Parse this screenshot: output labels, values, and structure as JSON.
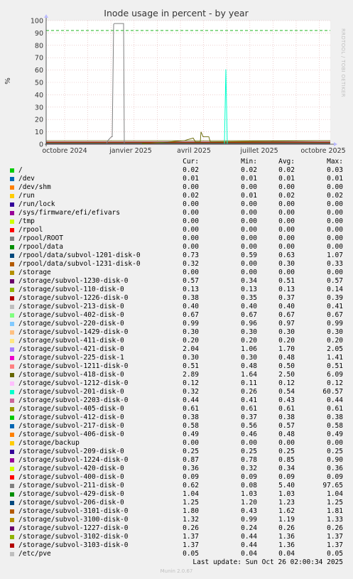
{
  "chart_data": {
    "type": "line",
    "title": "Inode usage in percent - by year",
    "ylabel": "%",
    "ylim": [
      0,
      100
    ],
    "yticks": [
      0,
      10,
      20,
      30,
      40,
      50,
      60,
      70,
      80,
      90,
      100
    ],
    "x_labels": [
      "octobre 2024",
      "janvier 2025",
      "avril 2025",
      "juillet 2025",
      "octobre 2025"
    ],
    "warning_line": 92,
    "legend_headers": {
      "cur": "Cur:",
      "min": "Min:",
      "avg": "Avg:",
      "max": "Max:"
    },
    "series": [
      {
        "name": "/",
        "color": "#00cc00",
        "cur": "0.02",
        "min": "0.02",
        "avg": "0.02",
        "max": "0.03"
      },
      {
        "name": "/dev",
        "color": "#0066b3",
        "cur": "0.01",
        "min": "0.01",
        "avg": "0.01",
        "max": "0.01"
      },
      {
        "name": "/dev/shm",
        "color": "#ff8000",
        "cur": "0.00",
        "min": "0.00",
        "avg": "0.00",
        "max": "0.00"
      },
      {
        "name": "/run",
        "color": "#ffcc00",
        "cur": "0.02",
        "min": "0.01",
        "avg": "0.02",
        "max": "0.02"
      },
      {
        "name": "/run/lock",
        "color": "#330099",
        "cur": "0.00",
        "min": "0.00",
        "avg": "0.00",
        "max": "0.00"
      },
      {
        "name": "/sys/firmware/efi/efivars",
        "color": "#990099",
        "cur": "0.00",
        "min": "0.00",
        "avg": "0.00",
        "max": "0.00"
      },
      {
        "name": "/tmp",
        "color": "#ccff00",
        "cur": "0.00",
        "min": "0.00",
        "avg": "0.00",
        "max": "0.00"
      },
      {
        "name": "/rpool",
        "color": "#ff0000",
        "cur": "0.00",
        "min": "0.00",
        "avg": "0.00",
        "max": "0.00"
      },
      {
        "name": "/rpool/ROOT",
        "color": "#808080",
        "cur": "0.00",
        "min": "0.00",
        "avg": "0.00",
        "max": "0.00"
      },
      {
        "name": "/rpool/data",
        "color": "#008f00",
        "cur": "0.00",
        "min": "0.00",
        "avg": "0.00",
        "max": "0.00"
      },
      {
        "name": "/rpool/data/subvol-1201-disk-0",
        "color": "#00487d",
        "cur": "0.73",
        "min": "0.59",
        "avg": "0.63",
        "max": "1.07"
      },
      {
        "name": "/rpool/data/subvol-1231-disk-0",
        "color": "#b35a00",
        "cur": "0.32",
        "min": "0.00",
        "avg": "0.30",
        "max": "0.33"
      },
      {
        "name": "/storage",
        "color": "#b38f00",
        "cur": "0.00",
        "min": "0.00",
        "avg": "0.00",
        "max": "0.00"
      },
      {
        "name": "/storage/subvol-1230-disk-0",
        "color": "#6b006b",
        "cur": "0.57",
        "min": "0.34",
        "avg": "0.51",
        "max": "0.57"
      },
      {
        "name": "/storage/subvol-110-disk-0",
        "color": "#8fb300",
        "cur": "0.13",
        "min": "0.13",
        "avg": "0.13",
        "max": "0.14"
      },
      {
        "name": "/storage/subvol-1226-disk-0",
        "color": "#b30000",
        "cur": "0.38",
        "min": "0.35",
        "avg": "0.37",
        "max": "0.39"
      },
      {
        "name": "/storage/subvol-213-disk-0",
        "color": "#bebebe",
        "cur": "0.40",
        "min": "0.40",
        "avg": "0.40",
        "max": "0.41"
      },
      {
        "name": "/storage/subvol-402-disk-0",
        "color": "#80ff80",
        "cur": "0.67",
        "min": "0.67",
        "avg": "0.67",
        "max": "0.67"
      },
      {
        "name": "/storage/subvol-220-disk-0",
        "color": "#80c9ff",
        "cur": "0.99",
        "min": "0.96",
        "avg": "0.97",
        "max": "0.99"
      },
      {
        "name": "/storage/subvol-1429-disk-0",
        "color": "#ffc080",
        "cur": "0.30",
        "min": "0.30",
        "avg": "0.30",
        "max": "0.30"
      },
      {
        "name": "/storage/subvol-411-disk-0",
        "color": "#ffe680",
        "cur": "0.20",
        "min": "0.20",
        "avg": "0.20",
        "max": "0.20"
      },
      {
        "name": "/storage/subvol-421-disk-0",
        "color": "#aa80ff",
        "cur": "2.04",
        "min": "1.06",
        "avg": "1.70",
        "max": "2.05"
      },
      {
        "name": "/storage/subvol-225-disk-1",
        "color": "#ee00cc",
        "cur": "0.30",
        "min": "0.30",
        "avg": "0.48",
        "max": "1.41"
      },
      {
        "name": "/storage/subvol-1211-disk-0",
        "color": "#ff8080",
        "cur": "0.51",
        "min": "0.48",
        "avg": "0.50",
        "max": "0.51"
      },
      {
        "name": "/storage/subvol-418-disk-0",
        "color": "#666600",
        "cur": "2.89",
        "min": "1.64",
        "avg": "2.50",
        "max": "6.09"
      },
      {
        "name": "/storage/subvol-1212-disk-0",
        "color": "#ffbfff",
        "cur": "0.12",
        "min": "0.11",
        "avg": "0.12",
        "max": "0.12"
      },
      {
        "name": "/storage/subvol-201-disk-0",
        "color": "#00ffcc",
        "cur": "0.32",
        "min": "0.26",
        "avg": "0.54",
        "max": "60.57"
      },
      {
        "name": "/storage/subvol-2203-disk-0",
        "color": "#cc6699",
        "cur": "0.44",
        "min": "0.41",
        "avg": "0.43",
        "max": "0.44"
      },
      {
        "name": "/storage/subvol-405-disk-0",
        "color": "#999900",
        "cur": "0.61",
        "min": "0.61",
        "avg": "0.61",
        "max": "0.61"
      },
      {
        "name": "/storage/subvol-412-disk-0",
        "color": "#00cc00",
        "cur": "0.38",
        "min": "0.37",
        "avg": "0.38",
        "max": "0.38"
      },
      {
        "name": "/storage/subvol-217-disk-0",
        "color": "#0066b3",
        "cur": "0.58",
        "min": "0.56",
        "avg": "0.57",
        "max": "0.58"
      },
      {
        "name": "/storage/subvol-406-disk-0",
        "color": "#ff8000",
        "cur": "0.49",
        "min": "0.46",
        "avg": "0.48",
        "max": "0.49"
      },
      {
        "name": "/storage/backup",
        "color": "#ffcc00",
        "cur": "0.00",
        "min": "0.00",
        "avg": "0.00",
        "max": "0.00"
      },
      {
        "name": "/storage/subvol-209-disk-0",
        "color": "#330099",
        "cur": "0.25",
        "min": "0.25",
        "avg": "0.25",
        "max": "0.25"
      },
      {
        "name": "/storage/subvol-1224-disk-0",
        "color": "#990099",
        "cur": "0.87",
        "min": "0.78",
        "avg": "0.85",
        "max": "0.90"
      },
      {
        "name": "/storage/subvol-420-disk-0",
        "color": "#ccff00",
        "cur": "0.36",
        "min": "0.32",
        "avg": "0.34",
        "max": "0.36"
      },
      {
        "name": "/storage/subvol-400-disk-0",
        "color": "#ff0000",
        "cur": "0.09",
        "min": "0.09",
        "avg": "0.09",
        "max": "0.09"
      },
      {
        "name": "/storage/subvol-211-disk-0",
        "color": "#808080",
        "cur": "0.62",
        "min": "0.08",
        "avg": "5.40",
        "max": "97.65"
      },
      {
        "name": "/storage/subvol-429-disk-0",
        "color": "#008f00",
        "cur": "1.04",
        "min": "1.03",
        "avg": "1.03",
        "max": "1.04"
      },
      {
        "name": "/storage/subvol-206-disk-0",
        "color": "#00487d",
        "cur": "1.25",
        "min": "1.20",
        "avg": "1.23",
        "max": "1.25"
      },
      {
        "name": "/storage/subvol-3101-disk-0",
        "color": "#b35a00",
        "cur": "1.80",
        "min": "0.43",
        "avg": "1.62",
        "max": "1.81"
      },
      {
        "name": "/storage/subvol-3100-disk-0",
        "color": "#b38f00",
        "cur": "1.32",
        "min": "0.99",
        "avg": "1.19",
        "max": "1.33"
      },
      {
        "name": "/storage/subvol-1227-disk-0",
        "color": "#6b006b",
        "cur": "0.26",
        "min": "0.24",
        "avg": "0.26",
        "max": "0.26"
      },
      {
        "name": "/storage/subvol-3102-disk-0",
        "color": "#8fb300",
        "cur": "1.37",
        "min": "0.44",
        "avg": "1.36",
        "max": "1.37"
      },
      {
        "name": "/storage/subvol-3103-disk-0",
        "color": "#b30000",
        "cur": "1.37",
        "min": "0.44",
        "avg": "1.36",
        "max": "1.37"
      },
      {
        "name": "/etc/pve",
        "color": "#bebebe",
        "cur": "0.05",
        "min": "0.04",
        "avg": "0.04",
        "max": "0.05"
      }
    ]
  },
  "footer": {
    "last_update": "Last update: Sun Oct 26 02:00:34 2025",
    "munin": "Munin 2.0.67",
    "rrdtool": "RRDTOOL / TOBI OETIKER"
  }
}
